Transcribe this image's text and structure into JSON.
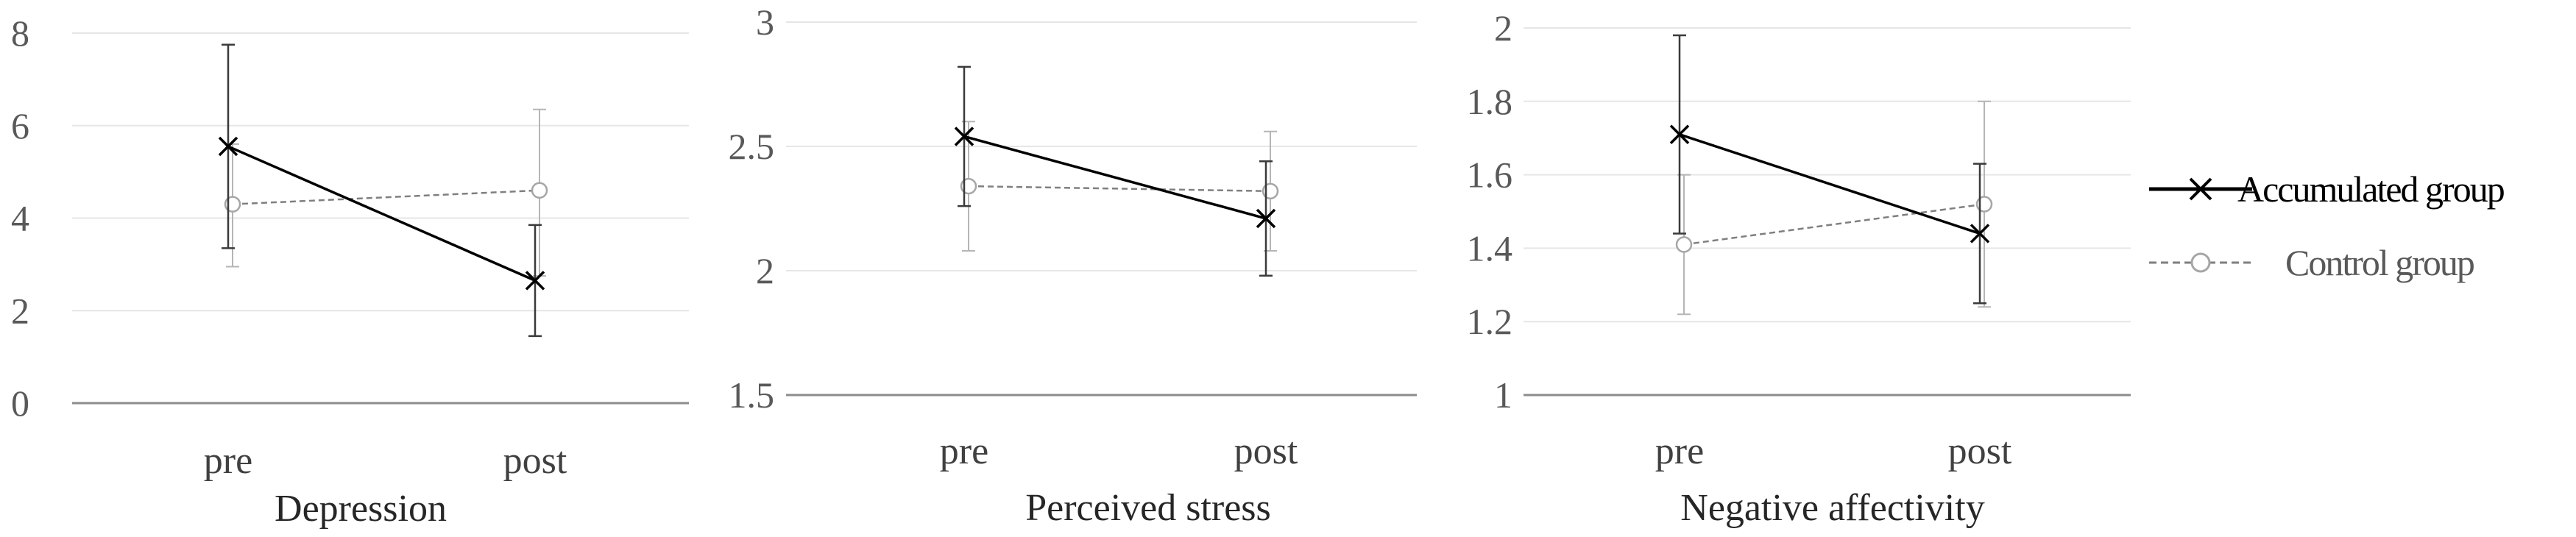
{
  "chart_data": [
    {
      "type": "line",
      "title": "Depression",
      "categories": [
        "pre",
        "post"
      ],
      "ylim": [
        0,
        8
      ],
      "yticks": [
        0,
        2,
        4,
        6,
        8
      ],
      "ytick_labels": [
        "0",
        "2",
        "4",
        "6",
        "8"
      ],
      "grid": true,
      "series": [
        {
          "name": "Accumulated group",
          "values": [
            5.55,
            2.65
          ],
          "err_low": [
            3.35,
            1.45
          ],
          "err_high": [
            7.75,
            3.85
          ]
        },
        {
          "name": "Control group",
          "values": [
            4.3,
            4.6
          ],
          "err_low": [
            2.95,
            2.75
          ],
          "err_high": [
            5.6,
            6.35
          ]
        }
      ]
    },
    {
      "type": "line",
      "title": "Perceived stress",
      "categories": [
        "pre",
        "post"
      ],
      "ylim": [
        1.5,
        3
      ],
      "yticks": [
        1.5,
        2,
        2.5,
        3
      ],
      "ytick_labels": [
        "1.5",
        "2",
        "2.5",
        "3"
      ],
      "grid": true,
      "series": [
        {
          "name": "Accumulated group",
          "values": [
            2.54,
            2.21
          ],
          "err_low": [
            2.26,
            1.98
          ],
          "err_high": [
            2.82,
            2.44
          ]
        },
        {
          "name": "Control group",
          "values": [
            2.34,
            2.32
          ],
          "err_low": [
            2.08,
            2.08
          ],
          "err_high": [
            2.6,
            2.56
          ]
        }
      ]
    },
    {
      "type": "line",
      "title": "Negative affectivity",
      "categories": [
        "pre",
        "post"
      ],
      "ylim": [
        1,
        2
      ],
      "yticks": [
        1,
        1.2,
        1.4,
        1.6,
        1.8,
        2
      ],
      "ytick_labels": [
        "1",
        "1.2",
        "1.4",
        "1.6",
        "1.8",
        "2"
      ],
      "grid": true,
      "series": [
        {
          "name": "Accumulated group",
          "values": [
            1.71,
            1.44
          ],
          "err_low": [
            1.44,
            1.25
          ],
          "err_high": [
            1.98,
            1.63
          ]
        },
        {
          "name": "Control group",
          "values": [
            1.41,
            1.52
          ],
          "err_low": [
            1.22,
            1.24
          ],
          "err_high": [
            1.6,
            1.8
          ]
        }
      ]
    }
  ],
  "legend": {
    "placement": "right",
    "entries": [
      {
        "label": "Accumulated group",
        "color": "#000000",
        "marker": "x-marker",
        "line": "solid"
      },
      {
        "label": "Control group",
        "color": "#7f7f7f",
        "marker": "circle-marker",
        "line": "dashed"
      }
    ]
  },
  "colors": {
    "accumulated": "#000000",
    "control": "#7f7f7f",
    "accumulated_err": "#3a3a3a",
    "control_err": "#b5b5b5",
    "grid": "#e6e6e6",
    "axis": "#8c8c8c"
  }
}
